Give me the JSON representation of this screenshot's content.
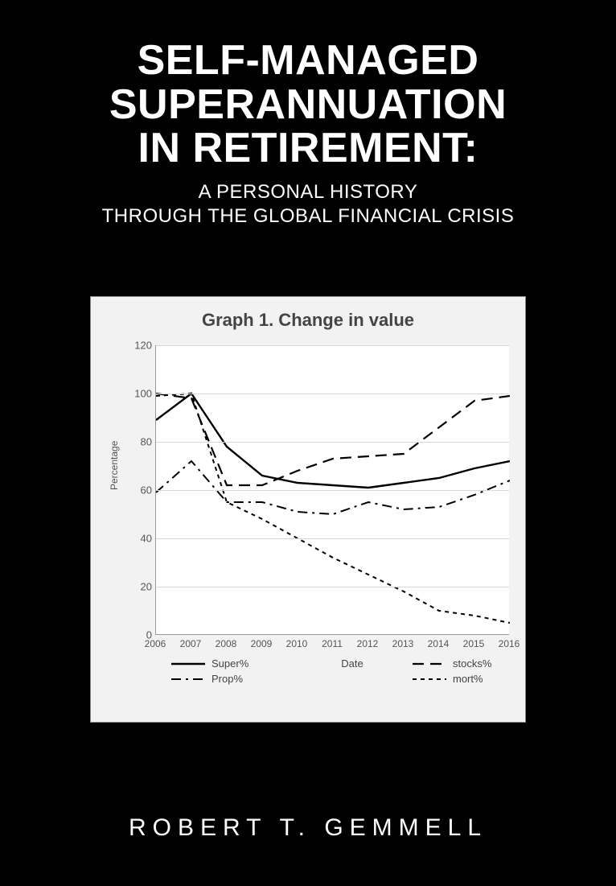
{
  "cover": {
    "background_color": "#000000",
    "title_lines": [
      "SELF-MANAGED",
      "SUPERANNUATION",
      "IN RETIREMENT:"
    ],
    "title_fontsize": 52,
    "title_color": "#ffffff",
    "subtitle_lines": [
      "A PERSONAL HISTORY",
      "THROUGH THE GLOBAL FINANCIAL CRISIS"
    ],
    "subtitle_fontsize": 24,
    "author": "ROBERT T. GEMMELL",
    "author_fontsize": 30,
    "author_letter_spacing": 8
  },
  "chart": {
    "type": "line",
    "panel_bg": "#f2f2f2",
    "plot_bg": "#ffffff",
    "grid_color": "#d8d8d8",
    "axis_color": "#999999",
    "title": "Graph 1. Change in value",
    "title_fontsize": 22,
    "title_color": "#444444",
    "x_label": "Date",
    "y_label": "Percentage",
    "label_fontsize": 12,
    "x_categories": [
      "2006",
      "2007",
      "2008",
      "2009",
      "2010",
      "2011",
      "2012",
      "2013",
      "2014",
      "2015",
      "2016"
    ],
    "ylim": [
      0,
      120
    ],
    "ytick_step": 20,
    "yticks": [
      0,
      20,
      40,
      60,
      80,
      100,
      120
    ],
    "series": [
      {
        "name": "Super%",
        "dash": "solid",
        "width": 2.4,
        "color": "#000000",
        "values": [
          89,
          100,
          78,
          66,
          63,
          62,
          61,
          63,
          65,
          69,
          72
        ]
      },
      {
        "name": "stocks%",
        "dash": "long-dash",
        "width": 2.2,
        "color": "#000000",
        "values": [
          100,
          98,
          62,
          62,
          68,
          73,
          74,
          75,
          86,
          97,
          99
        ]
      },
      {
        "name": "Prop%",
        "dash": "dash-dot",
        "width": 2.0,
        "color": "#000000",
        "values": [
          59,
          72,
          55,
          55,
          51,
          50,
          55,
          52,
          53,
          58,
          64
        ]
      },
      {
        "name": "mort%",
        "dash": "short-dash",
        "width": 2.0,
        "color": "#000000",
        "values": [
          99,
          100,
          55,
          48,
          40,
          32,
          25,
          18,
          10,
          8,
          5
        ]
      }
    ],
    "legend": {
      "rows": [
        [
          {
            "series": 0
          },
          {
            "gap_label": "Date"
          },
          {
            "series": 1
          }
        ],
        [
          {
            "series": 2
          },
          null,
          {
            "series": 3
          }
        ]
      ]
    }
  }
}
